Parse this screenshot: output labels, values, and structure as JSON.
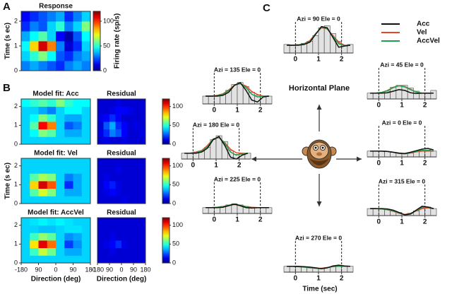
{
  "chart_data": [
    {
      "type": "heatmap",
      "panel": "A",
      "title": "Response",
      "ylabel": "Time (s ec)",
      "clabel": "Firing rate (sp/s)",
      "x": [
        -157.5,
        -112.5,
        -67.5,
        -22.5,
        22.5,
        67.5,
        112.5,
        157.5
      ],
      "y": [
        0.2,
        0.6,
        1.0,
        1.4,
        1.8,
        2.2
      ],
      "z": [
        [
          30,
          35,
          30,
          25,
          20,
          30,
          35,
          30
        ],
        [
          40,
          50,
          60,
          45,
          25,
          20,
          30,
          35
        ],
        [
          45,
          80,
          110,
          90,
          30,
          10,
          20,
          40
        ],
        [
          35,
          45,
          55,
          40,
          15,
          5,
          25,
          45
        ],
        [
          20,
          30,
          25,
          40,
          50,
          30,
          40,
          60
        ],
        [
          15,
          20,
          25,
          30,
          35,
          20,
          30,
          40
        ]
      ],
      "xlim": [
        -180,
        180
      ],
      "ylim": [
        0,
        2.4
      ],
      "yticks": [
        0,
        1,
        2
      ],
      "clim": [
        0,
        120
      ],
      "cticks": [
        0,
        50,
        100
      ]
    },
    {
      "type": "heatmap",
      "panel": "B",
      "title": "Model fit:  Acc",
      "ylabel": "",
      "x": [
        -157.5,
        -112.5,
        -67.5,
        -22.5,
        22.5,
        67.5,
        112.5,
        157.5
      ],
      "y": [
        0.2,
        0.6,
        1.0,
        1.4,
        1.8,
        2.2
      ],
      "z": [
        [
          40,
          40,
          40,
          40,
          40,
          40,
          40,
          40
        ],
        [
          40,
          45,
          60,
          55,
          40,
          35,
          35,
          40
        ],
        [
          40,
          55,
          105,
          90,
          40,
          25,
          30,
          40
        ],
        [
          40,
          45,
          60,
          50,
          40,
          35,
          35,
          40
        ],
        [
          40,
          40,
          35,
          30,
          40,
          45,
          45,
          40
        ],
        [
          45,
          50,
          55,
          50,
          60,
          50,
          45,
          45
        ]
      ],
      "xlim": [
        -180,
        180
      ],
      "ylim": [
        0,
        2.4
      ],
      "yticks": [
        0,
        1,
        2
      ],
      "clim": [
        0,
        120
      ]
    },
    {
      "type": "heatmap",
      "title": "Residual",
      "x": [
        -157.5,
        -112.5,
        -67.5,
        -22.5,
        22.5,
        67.5,
        112.5,
        157.5
      ],
      "y": [
        0.2,
        0.6,
        1.0,
        1.4,
        1.8,
        2.2
      ],
      "z": [
        [
          10,
          12,
          10,
          10,
          12,
          10,
          10,
          10
        ],
        [
          12,
          20,
          30,
          25,
          15,
          10,
          10,
          12
        ],
        [
          10,
          25,
          35,
          20,
          15,
          10,
          12,
          10
        ],
        [
          12,
          15,
          20,
          15,
          10,
          10,
          10,
          10
        ],
        [
          10,
          10,
          12,
          15,
          15,
          12,
          10,
          10
        ],
        [
          10,
          10,
          10,
          12,
          10,
          10,
          10,
          10
        ]
      ],
      "xlim": [
        -180,
        180
      ],
      "ylim": [
        0,
        2.4
      ],
      "clim": [
        0,
        120
      ],
      "cticks": [
        0,
        50,
        100
      ]
    },
    {
      "type": "heatmap",
      "title": "Model fit:  Vel",
      "ylabel": "Time (s ec)",
      "x": [
        -157.5,
        -112.5,
        -67.5,
        -22.5,
        22.5,
        67.5,
        112.5,
        157.5
      ],
      "y": [
        0.2,
        0.6,
        1.0,
        1.4,
        1.8,
        2.2
      ],
      "z": [
        [
          40,
          40,
          40,
          40,
          40,
          40,
          40,
          40
        ],
        [
          40,
          55,
          70,
          60,
          40,
          35,
          35,
          40
        ],
        [
          40,
          80,
          110,
          95,
          40,
          20,
          35,
          40
        ],
        [
          40,
          55,
          65,
          60,
          40,
          30,
          35,
          40
        ],
        [
          40,
          40,
          40,
          40,
          40,
          40,
          40,
          40
        ],
        [
          40,
          40,
          40,
          40,
          40,
          40,
          40,
          40
        ]
      ],
      "xlim": [
        -180,
        180
      ],
      "ylim": [
        0,
        2.4
      ],
      "yticks": [
        0,
        1,
        2
      ],
      "clim": [
        0,
        120
      ]
    },
    {
      "type": "heatmap",
      "title": "Residual",
      "x": [
        -157.5,
        -112.5,
        -67.5,
        -22.5,
        22.5,
        67.5,
        112.5,
        157.5
      ],
      "y": [
        0.2,
        0.6,
        1.0,
        1.4,
        1.8,
        2.2
      ],
      "z": [
        [
          10,
          10,
          10,
          10,
          12,
          10,
          10,
          10
        ],
        [
          10,
          12,
          15,
          12,
          10,
          10,
          10,
          10
        ],
        [
          10,
          15,
          18,
          12,
          10,
          10,
          10,
          10
        ],
        [
          10,
          12,
          10,
          10,
          10,
          10,
          10,
          10
        ],
        [
          10,
          10,
          10,
          12,
          10,
          10,
          10,
          10
        ],
        [
          10,
          10,
          10,
          10,
          10,
          10,
          10,
          10
        ]
      ],
      "xlim": [
        -180,
        180
      ],
      "ylim": [
        0,
        2.4
      ],
      "clim": [
        0,
        120
      ],
      "cticks": [
        0,
        50,
        100
      ]
    },
    {
      "type": "heatmap",
      "title": "Model fit:  AccVel",
      "ylabel": "",
      "x": [
        -157.5,
        -112.5,
        -67.5,
        -22.5,
        22.5,
        67.5,
        112.5,
        157.5
      ],
      "y": [
        0.2,
        0.6,
        1.0,
        1.4,
        1.8,
        2.2
      ],
      "z": [
        [
          40,
          40,
          40,
          40,
          40,
          40,
          40,
          40
        ],
        [
          40,
          52,
          68,
          58,
          40,
          35,
          35,
          40
        ],
        [
          40,
          78,
          108,
          92,
          40,
          22,
          32,
          40
        ],
        [
          40,
          52,
          62,
          56,
          40,
          32,
          35,
          40
        ],
        [
          40,
          40,
          38,
          38,
          40,
          42,
          42,
          40
        ],
        [
          40,
          42,
          44,
          42,
          44,
          42,
          40,
          40
        ]
      ],
      "xlim": [
        -180,
        180
      ],
      "ylim": [
        0,
        2.4
      ],
      "yticks": [
        0,
        1,
        2
      ],
      "clim": [
        0,
        120
      ],
      "xticks": [
        -180,
        {
          "value": -90,
          "label": "90"
        },
        0,
        90,
        180
      ],
      "xlabel": "Direction (deg)"
    },
    {
      "type": "heatmap",
      "title": "Residual",
      "x": [
        -157.5,
        -112.5,
        -67.5,
        -22.5,
        22.5,
        67.5,
        112.5,
        157.5
      ],
      "y": [
        0.2,
        0.6,
        1.0,
        1.4,
        1.8,
        2.2
      ],
      "z": [
        [
          10,
          10,
          10,
          10,
          10,
          10,
          10,
          10
        ],
        [
          10,
          10,
          12,
          10,
          10,
          10,
          10,
          10
        ],
        [
          10,
          12,
          15,
          20,
          12,
          10,
          10,
          10
        ],
        [
          10,
          10,
          12,
          10,
          10,
          10,
          10,
          10
        ],
        [
          10,
          10,
          10,
          10,
          10,
          10,
          10,
          10
        ],
        [
          10,
          10,
          10,
          10,
          10,
          10,
          10,
          10
        ]
      ],
      "xlim": [
        -180,
        180
      ],
      "ylim": [
        0,
        2.4
      ],
      "clim": [
        0,
        120
      ],
      "cticks": [
        0,
        50,
        100
      ],
      "xticks": [
        -180,
        {
          "value": -90,
          "label": "90"
        },
        0,
        90,
        180
      ],
      "xlabel": "Direction (deg)"
    },
    {
      "type": "psth",
      "panel": "C",
      "title": "Horizontal Plane",
      "xlabel": "Time (sec)",
      "legend": [
        {
          "name": "Acc",
          "color": "#111111"
        },
        {
          "name": "Vel",
          "color": "#e8452c"
        },
        {
          "name": "AccVel",
          "color": "#1aa34a"
        }
      ],
      "bins": [
        -0.5,
        -0.25,
        0,
        0.25,
        0.5,
        0.75,
        1,
        1.25,
        1.5,
        1.75,
        2,
        2.25,
        2.5
      ],
      "x": [
        -0.375,
        -0.125,
        0.125,
        0.375,
        0.625,
        0.875,
        1.125,
        1.375,
        1.625,
        1.875,
        2.125,
        2.375
      ],
      "xlim": [
        -0.5,
        2.5
      ],
      "xticks": [
        0,
        1,
        2
      ],
      "ylim": [
        0,
        80
      ],
      "panels": [
        {
          "title": "Azi = 90  Ele = 0",
          "values": [
            22,
            20,
            22,
            25,
            30,
            45,
            65,
            70,
            50,
            30,
            20,
            22
          ],
          "curves": [
            [
              20,
              20,
              20,
              22,
              28,
              48,
              68,
              65,
              40,
              15,
              18,
              20
            ],
            [
              20,
              20,
              21,
              24,
              32,
              50,
              65,
              62,
              45,
              28,
              20,
              20
            ],
            [
              20,
              20,
              21,
              23,
              30,
              49,
              66,
              63,
              43,
              24,
              19,
              20
            ]
          ]
        },
        {
          "title": "Azi = 45  Ele = 0",
          "values": [
            15,
            15,
            16,
            20,
            30,
            35,
            35,
            28,
            20,
            15,
            14,
            22
          ],
          "curves": [
            [
              15,
              15,
              15,
              16,
              20,
              24,
              22,
              16,
              14,
              15,
              15,
              15
            ],
            [
              15,
              15,
              17,
              22,
              30,
              34,
              32,
              25,
              18,
              15,
              15,
              15
            ],
            [
              15,
              15,
              17,
              21,
              29,
              34,
              31,
              24,
              18,
              15,
              15,
              15
            ]
          ]
        },
        {
          "title": "Azi = 135  Ele = 0",
          "values": [
            20,
            20,
            22,
            25,
            35,
            50,
            55,
            45,
            30,
            22,
            20,
            20
          ],
          "curves": [
            [
              20,
              20,
              20,
              22,
              30,
              48,
              55,
              35,
              10,
              5,
              18,
              20
            ],
            [
              20,
              20,
              22,
              26,
              36,
              48,
              52,
              46,
              32,
              24,
              20,
              20
            ],
            [
              20,
              20,
              21,
              25,
              34,
              48,
              53,
              42,
              25,
              18,
              20,
              20
            ]
          ]
        },
        {
          "title": "Azi = 0  Ele = 0",
          "values": [
            15,
            15,
            14,
            14,
            12,
            10,
            8,
            10,
            14,
            16,
            18,
            15
          ],
          "curves": [
            [
              15,
              15,
              15,
              14,
              12,
              10,
              9,
              12,
              16,
              20,
              22,
              18
            ],
            [
              15,
              15,
              15,
              14,
              12,
              9,
              8,
              10,
              13,
              15,
              15,
              15
            ],
            [
              15,
              15,
              15,
              14,
              12,
              9,
              8,
              11,
              14,
              17,
              17,
              15
            ]
          ]
        },
        {
          "title": "Azi = 180  Ele = 0",
          "values": [
            15,
            15,
            18,
            20,
            30,
            50,
            60,
            45,
            22,
            12,
            12,
            15
          ],
          "curves": [
            [
              15,
              15,
              15,
              18,
              28,
              50,
              58,
              35,
              5,
              0,
              10,
              15
            ],
            [
              15,
              15,
              18,
              22,
              35,
              52,
              55,
              42,
              25,
              16,
              15,
              15
            ],
            [
              15,
              15,
              17,
              20,
              32,
              51,
              56,
              40,
              18,
              10,
              14,
              15
            ]
          ]
        },
        {
          "title": "Azi = 225  Ele = 0",
          "values": [
            15,
            15,
            16,
            18,
            22,
            25,
            22,
            18,
            16,
            15,
            15,
            15
          ],
          "curves": [
            [
              15,
              15,
              15,
              16,
              20,
              24,
              20,
              15,
              14,
              15,
              15,
              15
            ],
            [
              15,
              15,
              16,
              18,
              21,
              23,
              21,
              18,
              16,
              15,
              15,
              15
            ],
            [
              15,
              15,
              16,
              17,
              21,
              24,
              21,
              17,
              15,
              15,
              15,
              15
            ]
          ]
        },
        {
          "title": "Azi = 315  Ele = 0",
          "values": [
            18,
            18,
            17,
            15,
            12,
            8,
            4,
            6,
            12,
            20,
            22,
            18
          ],
          "curves": [
            [
              18,
              18,
              18,
              17,
              14,
              8,
              2,
              4,
              14,
              24,
              22,
              18
            ],
            [
              18,
              18,
              17,
              15,
              11,
              6,
              3,
              6,
              12,
              18,
              20,
              18
            ],
            [
              18,
              18,
              17,
              16,
              12,
              7,
              2,
              5,
              13,
              21,
              21,
              18
            ]
          ]
        },
        {
          "title": "Azi = 270  Ele = 0",
          "values": [
            15,
            15,
            14,
            13,
            12,
            10,
            10,
            12,
            14,
            15,
            15,
            15
          ],
          "curves": [
            [
              15,
              15,
              15,
              14,
              13,
              11,
              9,
              11,
              16,
              18,
              16,
              15
            ],
            [
              15,
              15,
              14,
              13,
              11,
              10,
              10,
              12,
              14,
              15,
              15,
              15
            ],
            [
              15,
              15,
              14,
              13,
              12,
              10,
              9,
              11,
              15,
              16,
              15,
              15
            ]
          ]
        }
      ]
    }
  ]
}
